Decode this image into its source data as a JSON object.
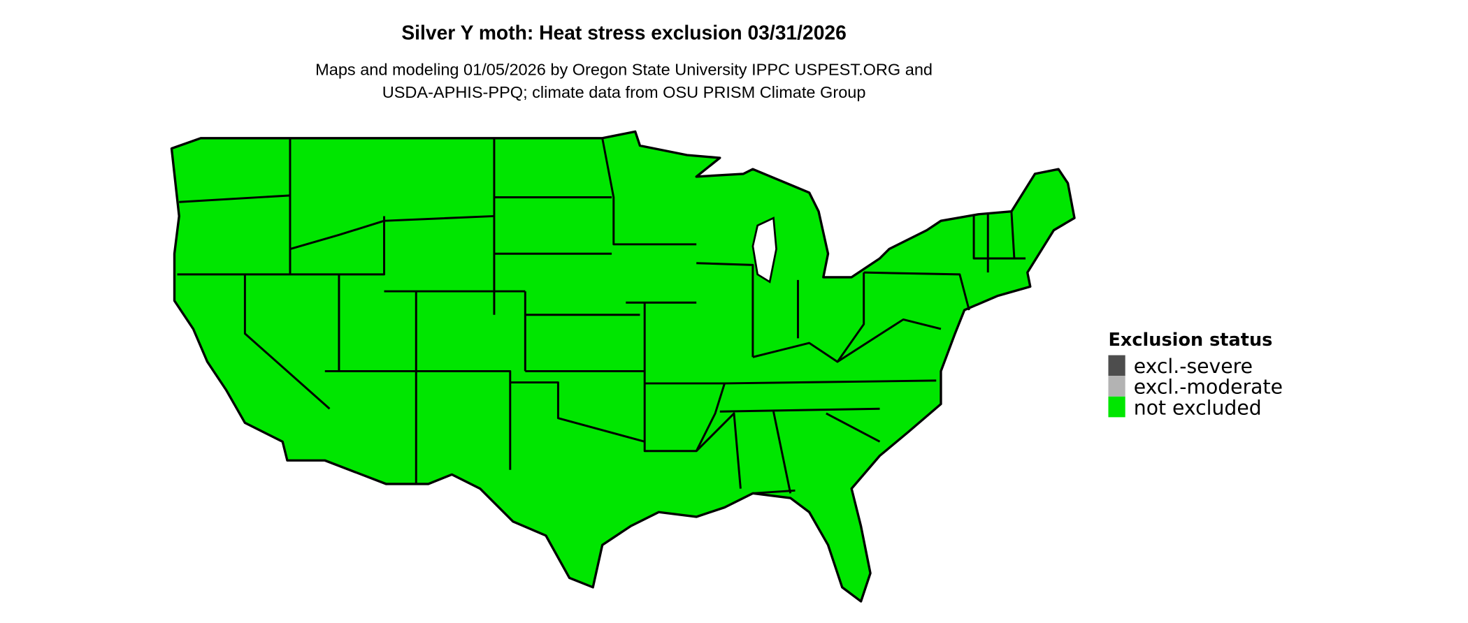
{
  "title": "Silver Y moth: Heat stress exclusion 03/31/2026",
  "subtitle": [
    "Maps and modeling 01/05/2026 by Oregon State University IPPC USPEST.ORG and",
    "USDA-APHIS-PPQ; climate data from OSU PRISM Climate Group"
  ],
  "map": {
    "region": "contiguous United States",
    "fill_status": "not excluded"
  },
  "legend": {
    "title": "Exclusion status",
    "items": [
      {
        "label": "excl.-severe",
        "color": "#4d4d4d"
      },
      {
        "label": "excl.-moderate",
        "color": "#b3b3b3"
      },
      {
        "label": "not excluded",
        "color": "#00e600"
      }
    ]
  }
}
